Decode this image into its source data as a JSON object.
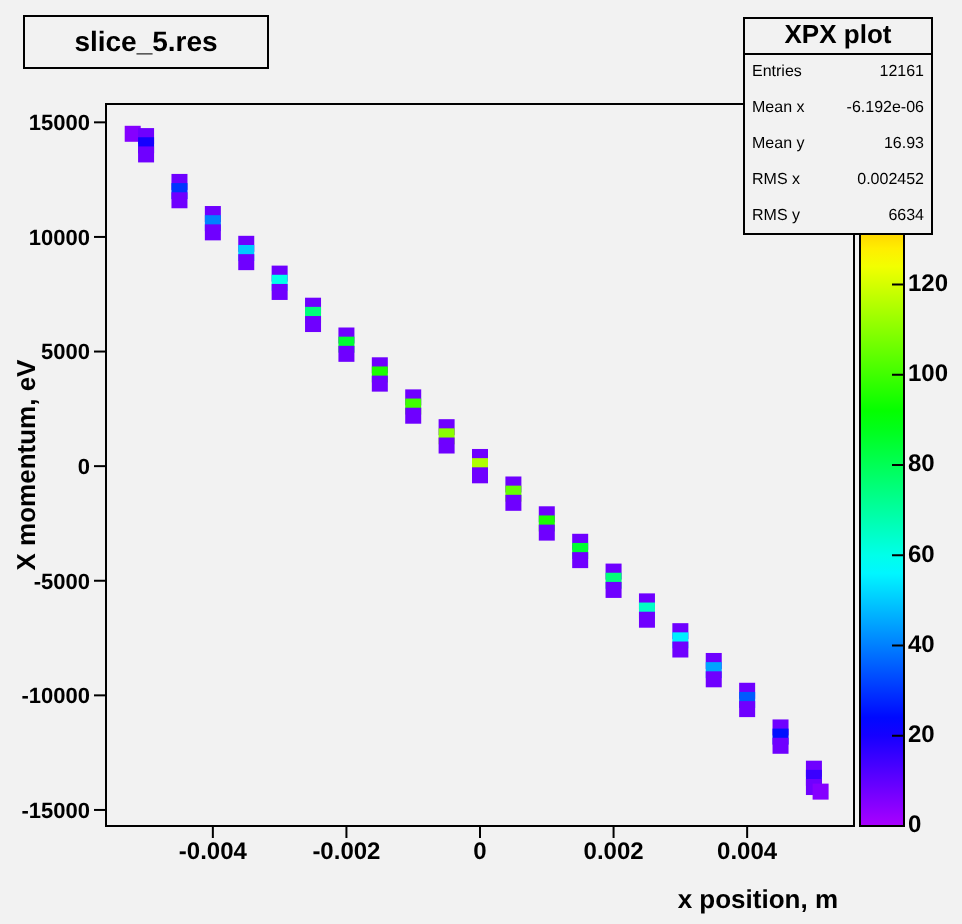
{
  "chart_data": {
    "type": "scatter",
    "title": "slice_5.res",
    "xlabel": "x position, m",
    "ylabel": "X momentum, eV",
    "annotations": [
      "XPX plot",
      "Entries",
      "12161",
      "Mean x",
      "-6.192e-06",
      "Mean y",
      "16.93",
      "RMS x",
      "0.002452",
      "RMS y",
      "6634"
    ],
    "x": [
      -0.0052,
      -0.005,
      -0.005,
      -0.005,
      -0.0045,
      -0.0045,
      -0.0045,
      -0.004,
      -0.004,
      -0.004,
      -0.0035,
      -0.0035,
      -0.0035,
      -0.003,
      -0.003,
      -0.003,
      -0.0025,
      -0.0025,
      -0.0025,
      -0.002,
      -0.002,
      -0.002,
      -0.0015,
      -0.0015,
      -0.0015,
      -0.001,
      -0.001,
      -0.001,
      -0.0005,
      -0.0005,
      -0.0005,
      0,
      0,
      0,
      0.0005,
      0.0005,
      0.0005,
      0.001,
      0.001,
      0.001,
      0.0015,
      0.0015,
      0.0015,
      0.002,
      0.002,
      0.002,
      0.0025,
      0.0025,
      0.0025,
      0.003,
      0.003,
      0.003,
      0.0035,
      0.0035,
      0.0035,
      0.004,
      0.004,
      0.004,
      0.0045,
      0.0045,
      0.0045,
      0.005,
      0.005,
      0.005,
      0.0051
    ],
    "values": [
      14500,
      14400,
      14000,
      13600,
      12400,
      12000,
      11600,
      11000,
      10600,
      10200,
      9700,
      9300,
      8900,
      8400,
      8000,
      7600,
      7000,
      6600,
      6200,
      5700,
      5300,
      4900,
      4400,
      4000,
      3600,
      3000,
      2600,
      2200,
      1700,
      1300,
      900,
      400,
      0,
      -400,
      -800,
      -1200,
      -1600,
      -2100,
      -2500,
      -2900,
      -3300,
      -3700,
      -4100,
      -4600,
      -5000,
      -5400,
      -5900,
      -6300,
      -6700,
      -7200,
      -7600,
      -8000,
      -8500,
      -8900,
      -9300,
      -9800,
      -10200,
      -10600,
      -11400,
      -11800,
      -12200,
      -13200,
      -13600,
      -14000,
      -14200
    ],
    "cvalues": [
      5,
      8,
      20,
      8,
      8,
      30,
      8,
      8,
      40,
      8,
      8,
      50,
      8,
      8,
      60,
      8,
      8,
      75,
      8,
      8,
      85,
      8,
      8,
      95,
      8,
      8,
      100,
      8,
      8,
      110,
      8,
      8,
      115,
      8,
      8,
      105,
      8,
      8,
      95,
      8,
      8,
      85,
      8,
      8,
      75,
      8,
      8,
      65,
      8,
      8,
      55,
      8,
      8,
      45,
      8,
      8,
      35,
      8,
      8,
      25,
      8,
      8,
      15,
      8,
      5
    ],
    "marker": "square",
    "xlim": [
      -0.0056,
      0.0056
    ],
    "xticks": [
      -0.004,
      -0.002,
      0,
      0.002,
      0.004
    ],
    "ylim": [
      -15700,
      15800
    ],
    "yticks": [
      {
        "value": -15000,
        "label": "-15000"
      },
      {
        "value": -10000,
        "label": "-10000"
      },
      -5000,
      0,
      5000,
      10000,
      15000
    ],
    "clim": [
      0,
      160
    ],
    "cticks": [
      0,
      20,
      40,
      60,
      80,
      100,
      120
    ],
    "grid": false,
    "legend": false
  }
}
